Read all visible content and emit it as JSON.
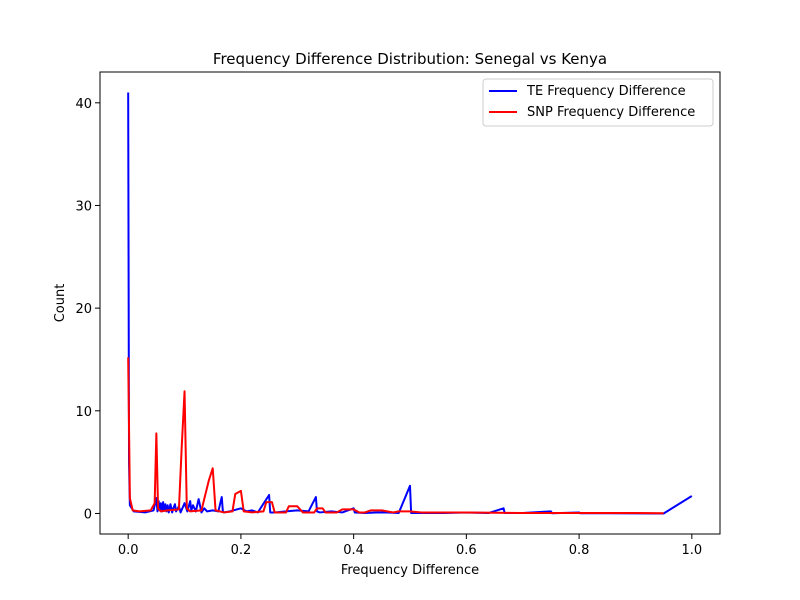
{
  "chart_data": {
    "type": "line",
    "title": "Frequency Difference Distribution: Senegal vs Kenya",
    "xlabel": "Frequency Difference",
    "ylabel": "Count",
    "xlim": [
      -0.05,
      1.05
    ],
    "ylim": [
      -2,
      43
    ],
    "xticks": [
      0.0,
      0.2,
      0.4,
      0.6,
      0.8,
      1.0
    ],
    "xtick_labels": [
      "0.0",
      "0.2",
      "0.4",
      "0.6",
      "0.8",
      "1.0"
    ],
    "yticks": [
      0,
      10,
      20,
      30,
      40
    ],
    "ytick_labels": [
      "0",
      "10",
      "20",
      "30",
      "40"
    ],
    "grid": false,
    "legend_position": "top-right",
    "series": [
      {
        "name": "TE Frequency Difference",
        "color": "#0000ff",
        "x": [
          0.0,
          0.0015,
          0.003,
          0.01,
          0.03,
          0.045,
          0.05,
          0.052,
          0.054,
          0.056,
          0.058,
          0.06,
          0.062,
          0.064,
          0.066,
          0.068,
          0.07,
          0.072,
          0.075,
          0.078,
          0.08,
          0.083,
          0.085,
          0.09,
          0.093,
          0.1,
          0.105,
          0.11,
          0.112,
          0.115,
          0.12,
          0.125,
          0.13,
          0.135,
          0.14,
          0.15,
          0.16,
          0.166,
          0.168,
          0.17,
          0.18,
          0.2,
          0.21,
          0.22,
          0.23,
          0.25,
          0.252,
          0.26,
          0.28,
          0.3,
          0.32,
          0.333,
          0.335,
          0.34,
          0.36,
          0.38,
          0.4,
          0.402,
          0.42,
          0.44,
          0.46,
          0.48,
          0.5,
          0.502,
          0.52,
          0.56,
          0.6,
          0.64,
          0.666,
          0.668,
          0.7,
          0.75,
          0.752,
          0.8,
          0.802,
          0.85,
          0.95,
          1.0
        ],
        "y": [
          41.0,
          5.0,
          0.8,
          0.2,
          0.1,
          0.3,
          1.5,
          0.2,
          1.2,
          0.3,
          1.0,
          0.2,
          1.1,
          0.3,
          0.9,
          0.2,
          0.8,
          0.1,
          0.9,
          0.1,
          0.5,
          0.9,
          0.2,
          0.7,
          0.1,
          1.0,
          0.2,
          1.2,
          0.3,
          0.8,
          0.2,
          1.4,
          0.1,
          0.5,
          0.2,
          0.3,
          0.2,
          1.6,
          0.2,
          0.1,
          0.2,
          0.5,
          0.2,
          0.3,
          0.1,
          1.8,
          0.1,
          0.1,
          0.2,
          0.3,
          0.2,
          1.6,
          0.2,
          0.1,
          0.2,
          0.1,
          0.5,
          0.1,
          0.05,
          0.1,
          0.1,
          0.05,
          2.7,
          0.05,
          0.05,
          0.05,
          0.1,
          0.05,
          0.5,
          0.05,
          0.05,
          0.2,
          0.02,
          0.1,
          0.02,
          0.02,
          0.0,
          1.7
        ]
      },
      {
        "name": "SNP Frequency Difference",
        "color": "#ff0000",
        "x": [
          0.0,
          0.003,
          0.008,
          0.02,
          0.04,
          0.047,
          0.05,
          0.053,
          0.058,
          0.07,
          0.09,
          0.095,
          0.1,
          0.104,
          0.11,
          0.13,
          0.143,
          0.15,
          0.155,
          0.17,
          0.185,
          0.19,
          0.2,
          0.205,
          0.22,
          0.24,
          0.245,
          0.255,
          0.26,
          0.28,
          0.285,
          0.3,
          0.31,
          0.33,
          0.335,
          0.345,
          0.35,
          0.37,
          0.38,
          0.4,
          0.41,
          0.42,
          0.43,
          0.45,
          0.47,
          0.48,
          0.5,
          0.52,
          0.55,
          0.6,
          0.7,
          0.8,
          0.9,
          0.95
        ],
        "y": [
          15.2,
          1.5,
          0.3,
          0.2,
          0.3,
          1.0,
          7.8,
          0.5,
          0.2,
          0.3,
          0.4,
          6.5,
          11.9,
          0.5,
          0.2,
          0.3,
          3.2,
          4.4,
          0.3,
          0.1,
          0.2,
          1.9,
          2.2,
          0.2,
          0.1,
          0.2,
          1.1,
          1.1,
          0.1,
          0.1,
          0.7,
          0.7,
          0.1,
          0.1,
          0.5,
          0.5,
          0.1,
          0.1,
          0.4,
          0.4,
          0.1,
          0.1,
          0.3,
          0.3,
          0.1,
          0.2,
          0.2,
          0.1,
          0.1,
          0.1,
          0.05,
          0.05,
          0.05,
          0.02
        ]
      }
    ]
  }
}
